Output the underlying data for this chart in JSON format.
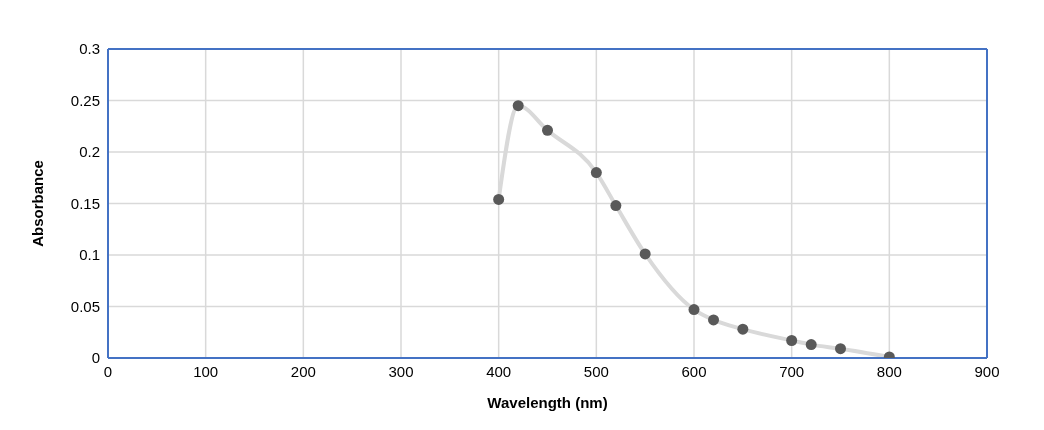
{
  "chart_data": {
    "type": "line",
    "xlabel": "Wavelength (nm)",
    "ylabel": "Absorbance",
    "x": [
      400,
      420,
      450,
      500,
      520,
      550,
      600,
      620,
      650,
      700,
      720,
      750,
      800
    ],
    "series": [
      {
        "color": "#d9d9d9",
        "values": [
          0.154,
          0.245,
          0.221,
          0.18,
          0.148,
          0.101,
          0.047,
          0.037,
          0.028,
          0.017,
          0.013,
          0.009,
          0.001
        ]
      }
    ],
    "xlim": [
      0,
      900
    ],
    "xticks": [
      0,
      100,
      200,
      300,
      400,
      500,
      600,
      700,
      800,
      900
    ],
    "ylim": [
      0,
      0.3
    ],
    "yticks": [
      0,
      0.05,
      0.1,
      0.15,
      0.2,
      0.25,
      0.3
    ],
    "grid": true,
    "marker": "circle",
    "line_style": "solid",
    "legend": false
  }
}
